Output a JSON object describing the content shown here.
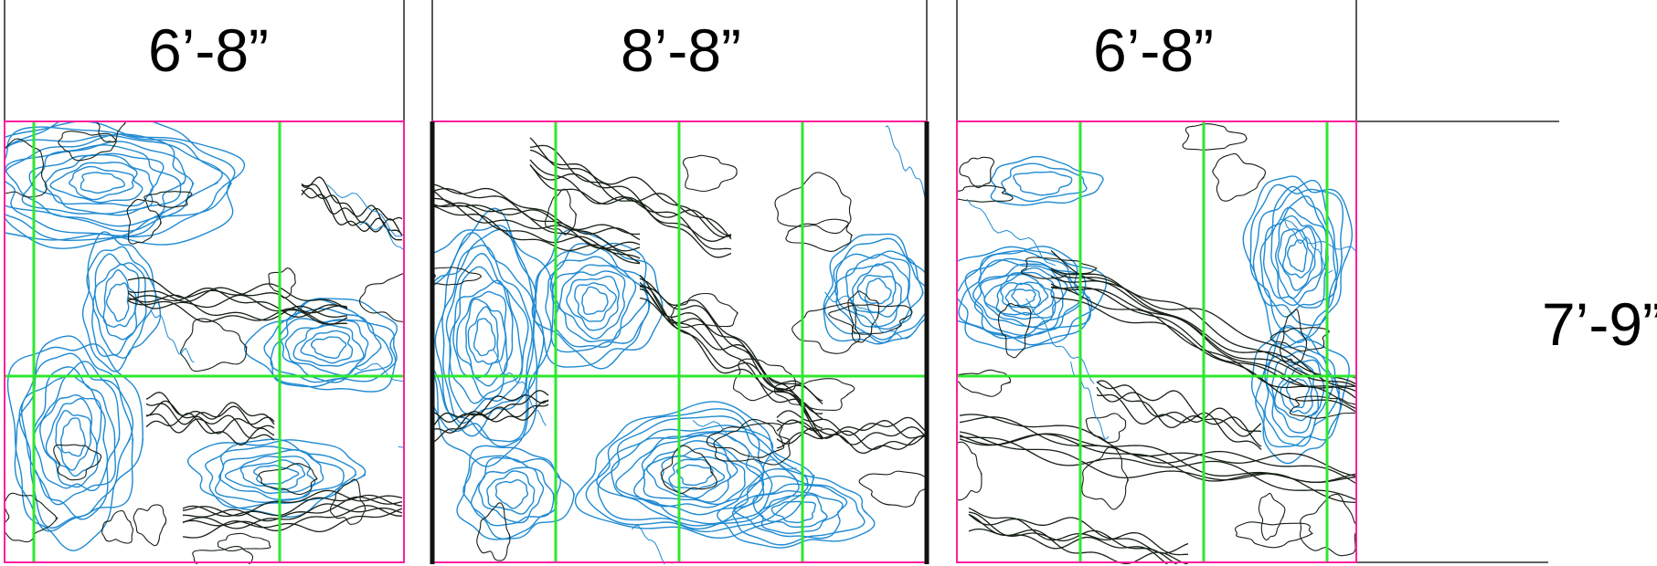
{
  "panels": [
    {
      "width_label": "6’-8”"
    },
    {
      "width_label": "8’-8”"
    },
    {
      "width_label": "6’-8”"
    }
  ],
  "height_label": "7’-9”",
  "colors": {
    "frame": "#ff1f9e",
    "grid": "#2ee82e",
    "contour_sea": "#1f8ad2",
    "contour_land": "#162016",
    "coast": "#6a1f6a",
    "dimension_line": "#000000"
  }
}
